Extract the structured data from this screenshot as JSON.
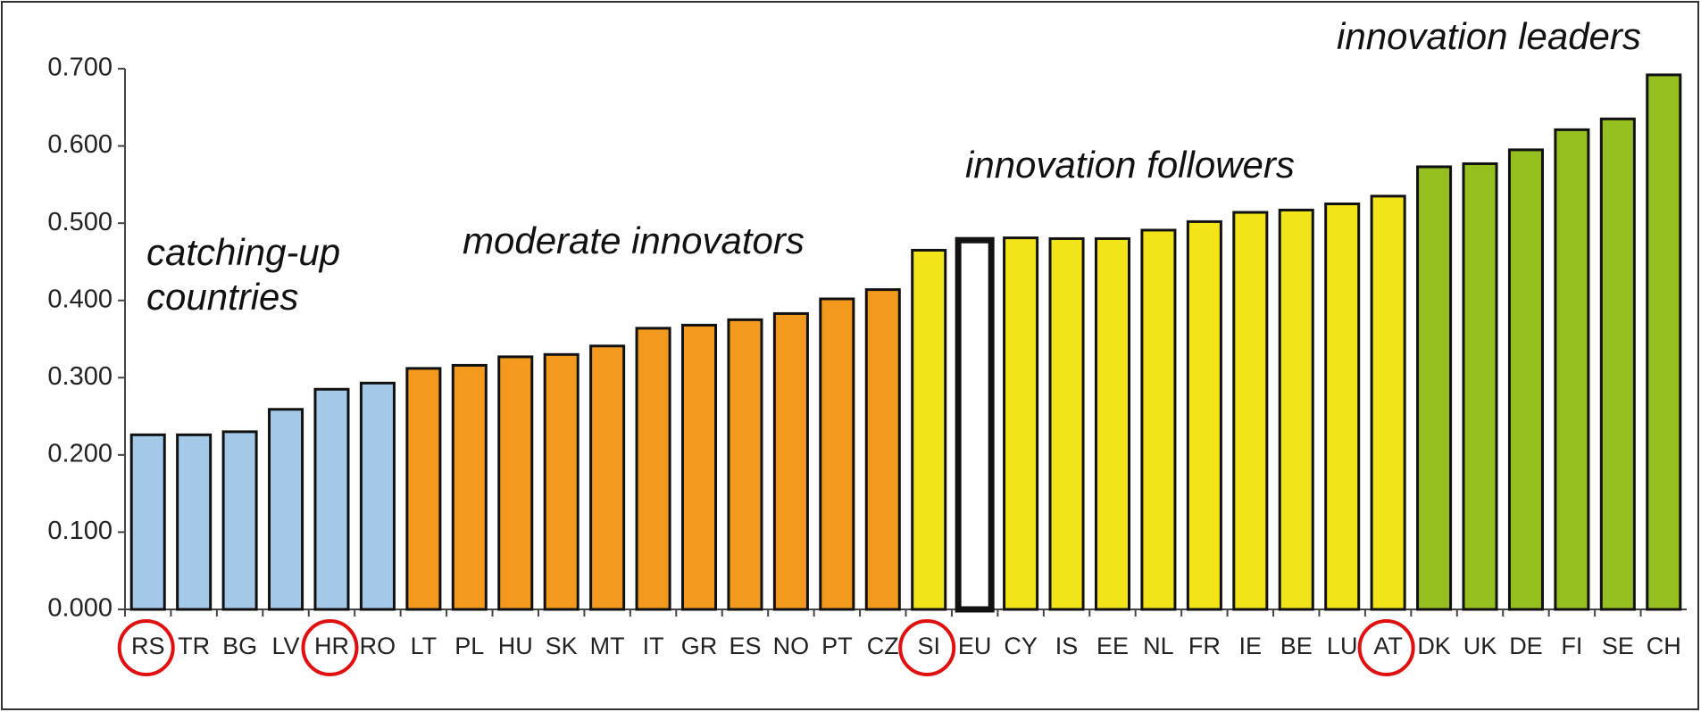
{
  "chart_data": {
    "type": "bar",
    "categories": [
      "RS",
      "TR",
      "BG",
      "LV",
      "HR",
      "RO",
      "LT",
      "PL",
      "HU",
      "SK",
      "MT",
      "IT",
      "GR",
      "ES",
      "NO",
      "PT",
      "CZ",
      "SI",
      "EU",
      "CY",
      "IS",
      "EE",
      "NL",
      "FR",
      "IE",
      "BE",
      "LU",
      "AT",
      "DK",
      "UK",
      "DE",
      "FI",
      "SE",
      "CH"
    ],
    "values": [
      0.226,
      0.226,
      0.23,
      0.259,
      0.285,
      0.293,
      0.312,
      0.316,
      0.327,
      0.33,
      0.341,
      0.364,
      0.368,
      0.375,
      0.383,
      0.402,
      0.414,
      0.465,
      0.478,
      0.481,
      0.48,
      0.48,
      0.491,
      0.502,
      0.514,
      0.517,
      0.525,
      0.535,
      0.573,
      0.577,
      0.595,
      0.621,
      0.635,
      0.692
    ],
    "colors": [
      "#a3c8e8",
      "#a3c8e8",
      "#a3c8e8",
      "#a3c8e8",
      "#a3c8e8",
      "#a3c8e8",
      "#f39a1e",
      "#f39a1e",
      "#f39a1e",
      "#f39a1e",
      "#f39a1e",
      "#f39a1e",
      "#f39a1e",
      "#f39a1e",
      "#f39a1e",
      "#f39a1e",
      "#f39a1e",
      "#f2e418",
      "#ffffff",
      "#f2e418",
      "#f2e418",
      "#f2e418",
      "#f2e418",
      "#f2e418",
      "#f2e418",
      "#f2e418",
      "#f2e418",
      "#f2e418",
      "#95bf1e",
      "#95bf1e",
      "#95bf1e",
      "#95bf1e",
      "#95bf1e",
      "#95bf1e"
    ],
    "highlight": [
      0,
      4,
      17,
      27
    ],
    "ylim": [
      0,
      0.7
    ],
    "yticks": [
      {
        "value": 0,
        "label": "0.000"
      },
      {
        "value": 0.1,
        "label": "0.100"
      },
      {
        "value": 0.2,
        "label": "0.200"
      },
      {
        "value": 0.3,
        "label": "0.300"
      },
      {
        "value": 0.4,
        "label": "0.400"
      },
      {
        "value": 0.5,
        "label": "0.500"
      },
      {
        "value": 0.6,
        "label": "0.600"
      },
      {
        "value": 0.7,
        "label": "0.700"
      }
    ],
    "grid": false,
    "annotations": [
      "catching-up countries",
      "moderate innovators",
      "innovation followers",
      "innovation leaders"
    ]
  }
}
